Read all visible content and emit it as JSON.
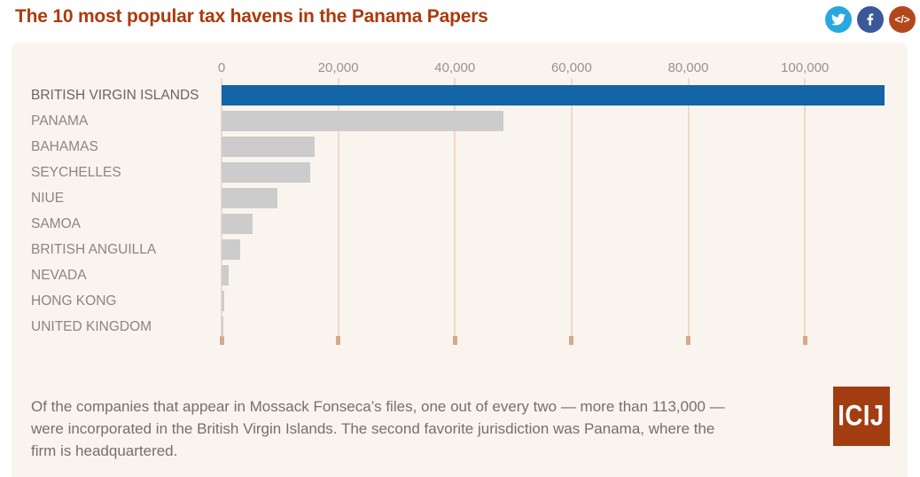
{
  "header": {
    "title": "The 10 most popular tax havens in the Panama Papers",
    "title_color": "#AC3A0E",
    "share_icons": {
      "twitter": {
        "name": "twitter-icon",
        "color": "#29A8E0"
      },
      "facebook": {
        "name": "facebook-icon",
        "color": "#3B5998"
      },
      "embed": {
        "name": "embed-code-icon",
        "color": "#B3471C",
        "glyph": "</>"
      }
    }
  },
  "chart_data": {
    "type": "bar",
    "orientation": "horizontal",
    "title": "The 10 most popular tax havens in the Panama Papers",
    "categories": [
      "BRITISH VIRGIN ISLANDS",
      "PANAMA",
      "BAHAMAS",
      "SEYCHELLES",
      "NIUE",
      "SAMOA",
      "BRITISH ANGUILLA",
      "NEVADA",
      "HONG KONG",
      "UNITED KINGDOM"
    ],
    "values": [
      113648,
      48360,
      15915,
      15182,
      9611,
      5307,
      3253,
      1260,
      452,
      148
    ],
    "highlight_index": 0,
    "bar_color_default": "#CCCCCC",
    "bar_color_highlight": "#1465A7",
    "x_ticks": [
      0,
      20000,
      40000,
      60000,
      80000,
      100000
    ],
    "x_tick_labels": [
      "0",
      "20,000",
      "40,000",
      "60,000",
      "80,000",
      "100,000"
    ],
    "xlim": [
      0,
      117600
    ],
    "grid": "vertical",
    "gridline_color": "#F0D9C5",
    "axis_tick_color": "#D6A98C",
    "xlabel": "",
    "ylabel": ""
  },
  "caption": {
    "text": "Of the companies that appear in Mossack Fonseca’s files, one out of every two — more than 113,000 — were incorporated in the British Virgin Islands. The second favorite jurisdiction was Panama, where the firm is headquartered."
  },
  "footer_logo": {
    "text": "ICIJ",
    "bg_color": "#A33C11"
  },
  "panel": {
    "bg_color": "#FAF4EF"
  }
}
